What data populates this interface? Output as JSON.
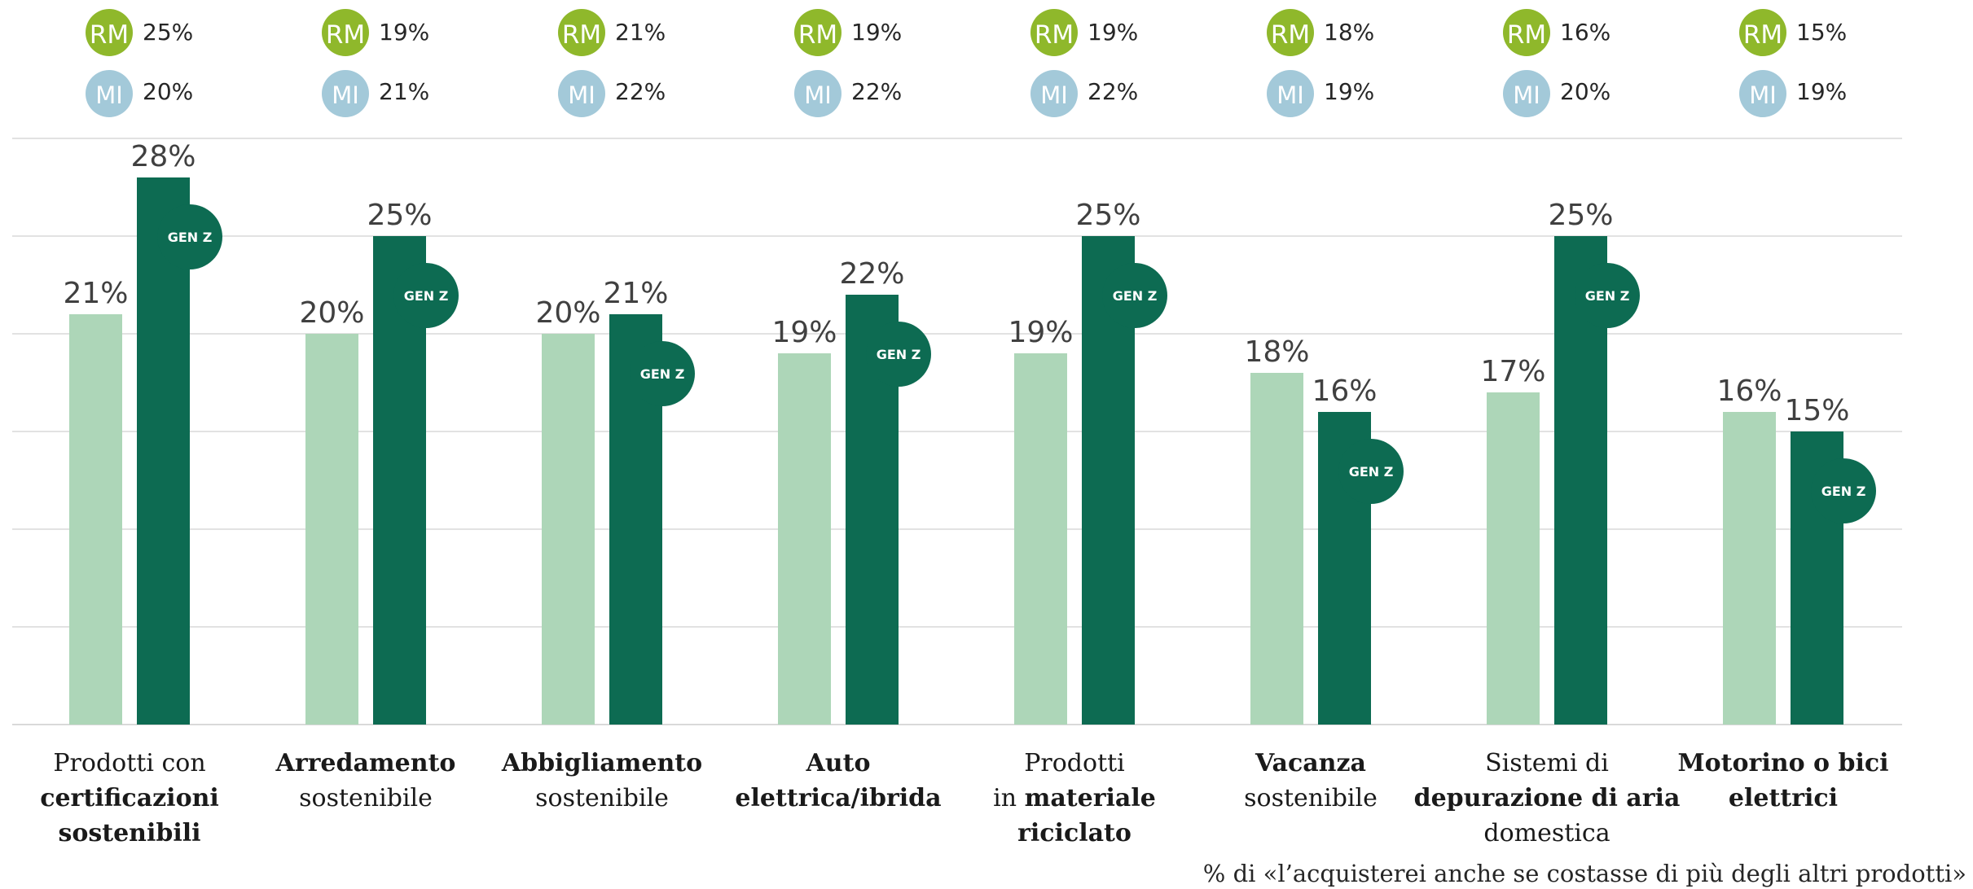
{
  "chart_data": {
    "type": "bar",
    "categories": [
      {
        "lines": [
          [
            {
              "t": "Prodotti con",
              "b": false
            }
          ],
          [
            {
              "t": "certificazioni",
              "b": true
            }
          ],
          [
            {
              "t": "sostenibili",
              "b": true
            }
          ]
        ]
      },
      {
        "lines": [
          [
            {
              "t": "Arredamento",
              "b": true
            }
          ],
          [
            {
              "t": "sostenibile",
              "b": false
            }
          ]
        ]
      },
      {
        "lines": [
          [
            {
              "t": "Abbigliamento",
              "b": true
            }
          ],
          [
            {
              "t": "sostenibile",
              "b": false
            }
          ]
        ]
      },
      {
        "lines": [
          [
            {
              "t": "Auto",
              "b": true
            }
          ],
          [
            {
              "t": "elettrica/ibrida",
              "b": true
            }
          ]
        ]
      },
      {
        "lines": [
          [
            {
              "t": "Prodotti",
              "b": false
            }
          ],
          [
            {
              "t": "in ",
              "b": false
            },
            {
              "t": "materiale",
              "b": true
            }
          ],
          [
            {
              "t": "riciclato",
              "b": true
            }
          ]
        ]
      },
      {
        "lines": [
          [
            {
              "t": "Vacanza",
              "b": true
            }
          ],
          [
            {
              "t": "sostenibile",
              "b": false
            }
          ]
        ]
      },
      {
        "lines": [
          [
            {
              "t": "Sistemi di",
              "b": false
            }
          ],
          [
            {
              "t": "depurazione di aria",
              "b": true
            }
          ],
          [
            {
              "t": "domestica",
              "b": false
            }
          ]
        ]
      },
      {
        "lines": [
          [
            {
              "t": "Motorino o bici",
              "b": true
            }
          ],
          [
            {
              "t": "elettrici",
              "b": true
            }
          ]
        ]
      }
    ],
    "series": [
      {
        "values": [
          21,
          20,
          20,
          19,
          19,
          18,
          17,
          16
        ],
        "color": "#add6b8"
      },
      {
        "values": [
          28,
          25,
          21,
          22,
          25,
          16,
          25,
          15
        ],
        "color": "#0d6b52"
      }
    ],
    "value_labels": [
      [
        "21%",
        "20%",
        "20%",
        "19%",
        "19%",
        "18%",
        "17%",
        "16%"
      ],
      [
        "28%",
        "25%",
        "21%",
        "22%",
        "25%",
        "16%",
        "25%",
        "15%"
      ]
    ],
    "ylim": [
      0,
      30
    ],
    "grid": true,
    "gridline_count": 6,
    "genz_badge": "GEN Z",
    "city_badges": {
      "rm": {
        "label": "RM",
        "color": "#8fb82b",
        "values": [
          "25%",
          "19%",
          "21%",
          "19%",
          "19%",
          "18%",
          "16%",
          "15%"
        ]
      },
      "mi": {
        "label": "MI",
        "color": "#a3c9d9",
        "values": [
          "20%",
          "21%",
          "22%",
          "22%",
          "22%",
          "19%",
          "20%",
          "19%"
        ]
      }
    },
    "footnote": "% di «l’acquisterei anche se costasse di più degli altri prodotti»"
  },
  "colors": {
    "grid": "#d9d9d9",
    "genz_badge": "#0d6b52"
  }
}
